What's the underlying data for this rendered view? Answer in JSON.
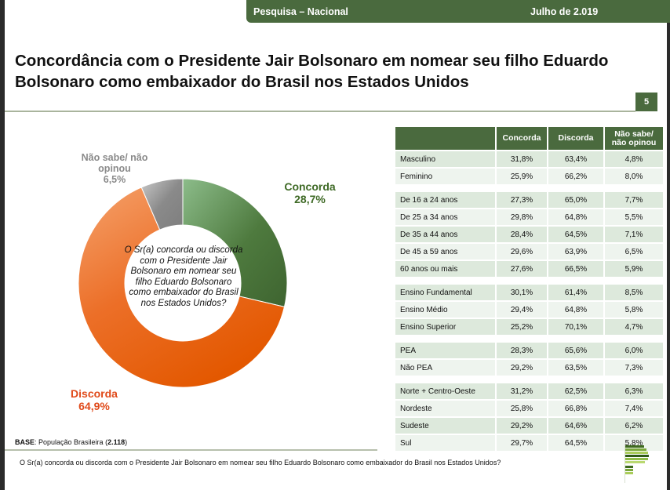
{
  "header": {
    "left": "Pesquisa – Nacional",
    "right": "Julho de 2.019"
  },
  "title": "Concordância com o Presidente Jair Bolsonaro em nomear seu filho Eduardo Bolsonaro como embaixador do Brasil nos Estados Unidos",
  "page_number": "5",
  "colors": {
    "brand": "#4a6a3e",
    "concorda": "#4e7a3e",
    "discorda": "#e65c0e",
    "nao_sabe": "#8c8c8c"
  },
  "center_question": "O Sr(a) concorda ou discorda com o Presidente Jair Bolsonaro em nomear seu filho Eduardo Bolsonaro como embaixador do Brasil nos Estados Unidos?",
  "labels": {
    "nao_sabe_name": "Não sabe/ não opinou",
    "nao_sabe_value": "6,5%",
    "concorda_name": "Concorda",
    "concorda_value": "28,7%",
    "discorda_name": "Discorda",
    "discorda_value": "64,9%"
  },
  "base": {
    "label": "BASE",
    "text": ": População Brasileira (",
    "n": "2.118",
    "close": ")"
  },
  "footer_question": "O Sr(a) concorda ou discorda com o Presidente Jair Bolsonaro em nomear seu filho Eduardo Bolsonaro como embaixador do Brasil nos Estados Unidos?",
  "chart_data": [
    {
      "type": "pie",
      "subtype": "donut",
      "title": "Concordância com o Presidente Jair Bolsonaro em nomear seu filho Eduardo Bolsonaro como embaixador do Brasil nos Estados Unidos",
      "categories": [
        "Concorda",
        "Discorda",
        "Não sabe/ não opinou"
      ],
      "values": [
        28.7,
        64.9,
        6.5
      ],
      "unit": "%",
      "start": "top, clockwise"
    },
    {
      "type": "table",
      "columns": [
        "",
        "Concorda",
        "Discorda",
        "Não sabe/ não opinou"
      ],
      "header": {
        "c1": "Concorda",
        "c2": "Discorda",
        "c3a": "Não sabe/",
        "c3b": "não opinou"
      },
      "groups": [
        [
          [
            "Masculino",
            "31,8%",
            "63,4%",
            "4,8%"
          ],
          [
            "Feminino",
            "25,9%",
            "66,2%",
            "8,0%"
          ]
        ],
        [
          [
            "De 16 a 24 anos",
            "27,3%",
            "65,0%",
            "7,7%"
          ],
          [
            "De 25 a 34 anos",
            "29,8%",
            "64,8%",
            "5,5%"
          ],
          [
            "De 35 a 44 anos",
            "28,4%",
            "64,5%",
            "7,1%"
          ],
          [
            "De 45 a 59 anos",
            "29,6%",
            "63,9%",
            "6,5%"
          ],
          [
            "60 anos ou mais",
            "27,6%",
            "66,5%",
            "5,9%"
          ]
        ],
        [
          [
            "Ensino Fundamental",
            "30,1%",
            "61,4%",
            "8,5%"
          ],
          [
            "Ensino Médio",
            "29,4%",
            "64,8%",
            "5,8%"
          ],
          [
            "Ensino Superior",
            "25,2%",
            "70,1%",
            "4,7%"
          ]
        ],
        [
          [
            "PEA",
            "28,3%",
            "65,6%",
            "6,0%"
          ],
          [
            "Não PEA",
            "29,2%",
            "63,5%",
            "7,3%"
          ]
        ],
        [
          [
            "Norte + Centro-Oeste",
            "31,2%",
            "62,5%",
            "6,3%"
          ],
          [
            "Nordeste",
            "25,8%",
            "66,8%",
            "7,4%"
          ],
          [
            "Sudeste",
            "29,2%",
            "64,6%",
            "6,2%"
          ],
          [
            "Sul",
            "29,7%",
            "64,5%",
            "5,8%"
          ]
        ]
      ]
    }
  ]
}
